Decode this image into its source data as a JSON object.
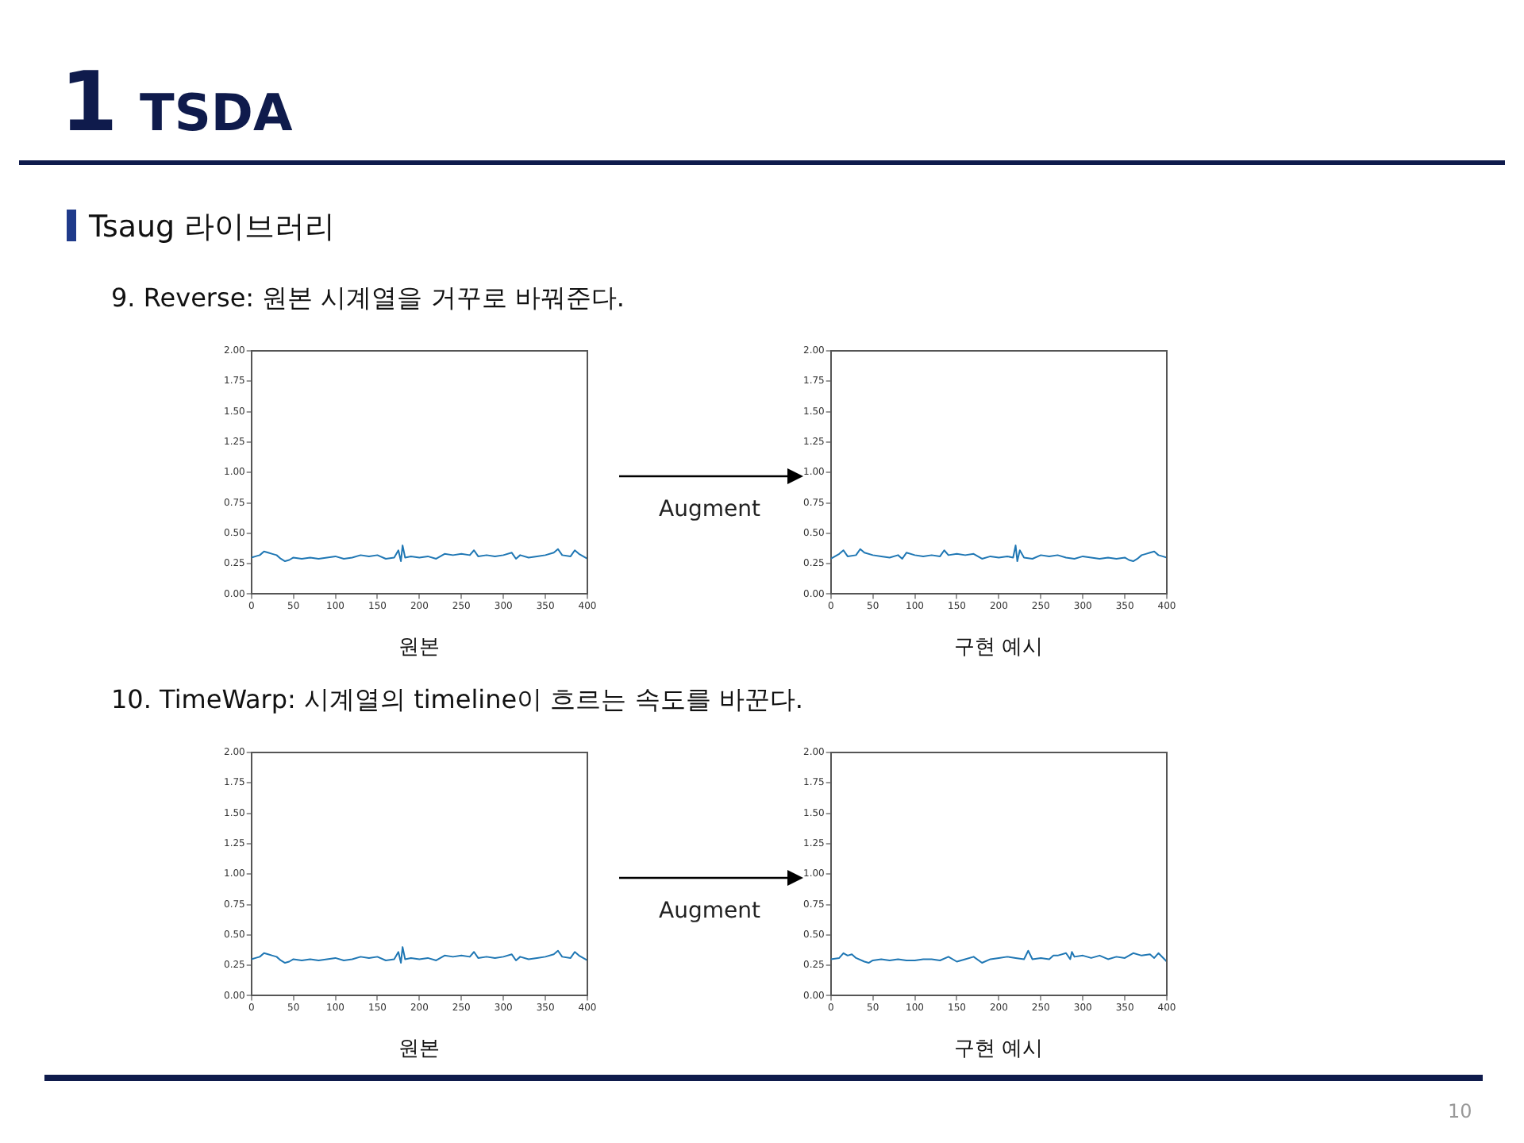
{
  "chart_data": [
    {
      "type": "line",
      "title": "9.    Reverse: 원본 시계열을 거꾸로 바꿔준다.",
      "xlabel": "원본",
      "annotations": [
        "1",
        "TSDA",
        "Tsaug 라이브러리"
      ],
      "xlim": [
        0,
        400
      ],
      "xticks": [
        0,
        50,
        100,
        150,
        200,
        250,
        300,
        350,
        400
      ],
      "ylim": [
        0,
        2
      ],
      "yticks": [
        {
          "value": 0,
          "label": "0.00"
        },
        {
          "value": 0.25,
          "label": "0.25"
        },
        {
          "value": 0.5,
          "label": "0.50"
        },
        {
          "value": 0.75,
          "label": "0.75"
        },
        {
          "value": 1,
          "label": "1.00"
        },
        {
          "value": 1.25,
          "label": "1.25"
        },
        {
          "value": 1.5,
          "label": "1.50"
        },
        {
          "value": 1.75,
          "label": "1.75"
        },
        {
          "value": 2,
          "label": "2.00"
        }
      ],
      "grid": false,
      "legend": false,
      "x": [
        0,
        5,
        10,
        15,
        20,
        25,
        30,
        35,
        40,
        45,
        50,
        60,
        70,
        80,
        90,
        100,
        110,
        120,
        130,
        140,
        150,
        160,
        170,
        175,
        178,
        180,
        183,
        190,
        200,
        210,
        220,
        230,
        240,
        250,
        260,
        265,
        270,
        280,
        290,
        300,
        310,
        315,
        320,
        330,
        340,
        350,
        360,
        365,
        370,
        380,
        385,
        390,
        395,
        400
      ],
      "series": [
        {
          "color": "#1f77b4",
          "values": [
            0.3,
            0.31,
            0.32,
            0.35,
            0.34,
            0.33,
            0.32,
            0.29,
            0.27,
            0.28,
            0.3,
            0.29,
            0.3,
            0.29,
            0.3,
            0.31,
            0.29,
            0.3,
            0.32,
            0.31,
            0.32,
            0.29,
            0.3,
            0.36,
            0.27,
            0.4,
            0.3,
            0.31,
            0.3,
            0.31,
            0.29,
            0.33,
            0.32,
            0.33,
            0.32,
            0.36,
            0.31,
            0.32,
            0.31,
            0.32,
            0.34,
            0.29,
            0.32,
            0.3,
            0.31,
            0.32,
            0.34,
            0.37,
            0.32,
            0.31,
            0.36,
            0.33,
            0.31,
            0.29
          ]
        }
      ]
    },
    {
      "type": "line",
      "xlabel": "구현 예시",
      "annotations": [
        "Augment"
      ],
      "xlim": [
        0,
        400
      ],
      "xticks": [
        0,
        50,
        100,
        150,
        200,
        250,
        300,
        350,
        400
      ],
      "ylim": [
        0,
        2
      ],
      "yticks": [
        {
          "value": 0,
          "label": "0.00"
        },
        {
          "value": 0.25,
          "label": "0.25"
        },
        {
          "value": 0.5,
          "label": "0.50"
        },
        {
          "value": 0.75,
          "label": "0.75"
        },
        {
          "value": 1,
          "label": "1.00"
        },
        {
          "value": 1.25,
          "label": "1.25"
        },
        {
          "value": 1.5,
          "label": "1.50"
        },
        {
          "value": 1.75,
          "label": "1.75"
        },
        {
          "value": 2,
          "label": "2.00"
        }
      ],
      "grid": false,
      "legend": false,
      "x": [
        0,
        5,
        10,
        15,
        20,
        30,
        35,
        40,
        50,
        60,
        70,
        80,
        85,
        90,
        100,
        110,
        120,
        130,
        135,
        140,
        150,
        160,
        170,
        180,
        190,
        200,
        210,
        217,
        220,
        222,
        225,
        230,
        240,
        250,
        260,
        270,
        280,
        290,
        300,
        310,
        320,
        330,
        340,
        350,
        355,
        360,
        365,
        370,
        375,
        380,
        385,
        390,
        395,
        400
      ],
      "series": [
        {
          "color": "#1f77b4",
          "values": [
            0.29,
            0.31,
            0.33,
            0.36,
            0.31,
            0.32,
            0.37,
            0.34,
            0.32,
            0.31,
            0.3,
            0.32,
            0.29,
            0.34,
            0.32,
            0.31,
            0.32,
            0.31,
            0.36,
            0.32,
            0.33,
            0.32,
            0.33,
            0.29,
            0.31,
            0.3,
            0.31,
            0.3,
            0.4,
            0.27,
            0.36,
            0.3,
            0.29,
            0.32,
            0.31,
            0.32,
            0.3,
            0.29,
            0.31,
            0.3,
            0.29,
            0.3,
            0.29,
            0.3,
            0.28,
            0.27,
            0.29,
            0.32,
            0.33,
            0.34,
            0.35,
            0.32,
            0.31,
            0.3
          ]
        }
      ]
    },
    {
      "type": "line",
      "title": "10.  TimeWarp: 시계열의 timeline이 흐르는 속도를 바꾼다.",
      "xlabel": "원본",
      "xlim": [
        0,
        400
      ],
      "xticks": [
        0,
        50,
        100,
        150,
        200,
        250,
        300,
        350,
        400
      ],
      "ylim": [
        0,
        2
      ],
      "yticks": [
        {
          "value": 0,
          "label": "0.00"
        },
        {
          "value": 0.25,
          "label": "0.25"
        },
        {
          "value": 0.5,
          "label": "0.50"
        },
        {
          "value": 0.75,
          "label": "0.75"
        },
        {
          "value": 1,
          "label": "1.00"
        },
        {
          "value": 1.25,
          "label": "1.25"
        },
        {
          "value": 1.5,
          "label": "1.50"
        },
        {
          "value": 1.75,
          "label": "1.75"
        },
        {
          "value": 2,
          "label": "2.00"
        }
      ],
      "grid": false,
      "legend": false,
      "x": [
        0,
        5,
        10,
        15,
        20,
        25,
        30,
        35,
        40,
        45,
        50,
        60,
        70,
        80,
        90,
        100,
        110,
        120,
        130,
        140,
        150,
        160,
        170,
        175,
        178,
        180,
        183,
        190,
        200,
        210,
        220,
        230,
        240,
        250,
        260,
        265,
        270,
        280,
        290,
        300,
        310,
        315,
        320,
        330,
        340,
        350,
        360,
        365,
        370,
        380,
        385,
        390,
        395,
        400
      ],
      "series": [
        {
          "color": "#1f77b4",
          "values": [
            0.3,
            0.31,
            0.32,
            0.35,
            0.34,
            0.33,
            0.32,
            0.29,
            0.27,
            0.28,
            0.3,
            0.29,
            0.3,
            0.29,
            0.3,
            0.31,
            0.29,
            0.3,
            0.32,
            0.31,
            0.32,
            0.29,
            0.3,
            0.36,
            0.27,
            0.4,
            0.3,
            0.31,
            0.3,
            0.31,
            0.29,
            0.33,
            0.32,
            0.33,
            0.32,
            0.36,
            0.31,
            0.32,
            0.31,
            0.32,
            0.34,
            0.29,
            0.32,
            0.3,
            0.31,
            0.32,
            0.34,
            0.37,
            0.32,
            0.31,
            0.36,
            0.33,
            0.31,
            0.29
          ]
        }
      ]
    },
    {
      "type": "line",
      "xlabel": "구현 예시",
      "annotations": [
        "Augment",
        "10"
      ],
      "xlim": [
        0,
        400
      ],
      "xticks": [
        0,
        50,
        100,
        150,
        200,
        250,
        300,
        350,
        400
      ],
      "ylim": [
        0,
        2
      ],
      "yticks": [
        {
          "value": 0,
          "label": "0.00"
        },
        {
          "value": 0.25,
          "label": "0.25"
        },
        {
          "value": 0.5,
          "label": "0.50"
        },
        {
          "value": 0.75,
          "label": "0.75"
        },
        {
          "value": 1,
          "label": "1.00"
        },
        {
          "value": 1.25,
          "label": "1.25"
        },
        {
          "value": 1.5,
          "label": "1.50"
        },
        {
          "value": 1.75,
          "label": "1.75"
        },
        {
          "value": 2,
          "label": "2.00"
        }
      ],
      "grid": false,
      "legend": false,
      "x": [
        0,
        10,
        15,
        20,
        25,
        30,
        40,
        45,
        50,
        60,
        70,
        80,
        90,
        100,
        110,
        120,
        130,
        140,
        150,
        160,
        170,
        180,
        190,
        200,
        210,
        220,
        230,
        235,
        240,
        250,
        260,
        265,
        270,
        280,
        285,
        287,
        290,
        300,
        310,
        320,
        330,
        340,
        350,
        360,
        370,
        380,
        385,
        390,
        400
      ],
      "series": [
        {
          "color": "#1f77b4",
          "values": [
            0.3,
            0.31,
            0.35,
            0.33,
            0.34,
            0.31,
            0.28,
            0.27,
            0.29,
            0.3,
            0.29,
            0.3,
            0.29,
            0.29,
            0.3,
            0.3,
            0.29,
            0.32,
            0.28,
            0.3,
            0.32,
            0.27,
            0.3,
            0.31,
            0.32,
            0.31,
            0.3,
            0.37,
            0.3,
            0.31,
            0.3,
            0.33,
            0.33,
            0.35,
            0.3,
            0.36,
            0.32,
            0.33,
            0.31,
            0.33,
            0.3,
            0.32,
            0.31,
            0.35,
            0.33,
            0.34,
            0.31,
            0.35,
            0.28
          ]
        }
      ]
    }
  ]
}
